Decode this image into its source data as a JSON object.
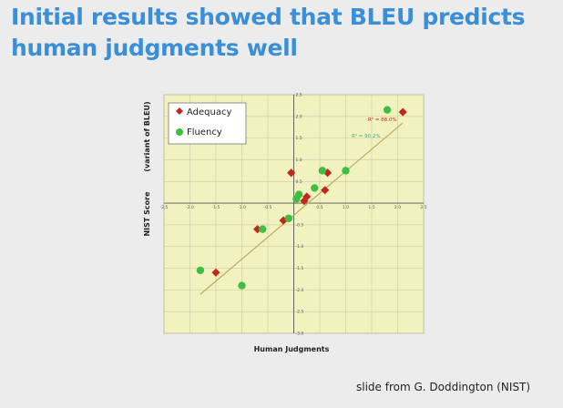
{
  "slide": {
    "title_line1": "Initial results showed that BLEU predicts",
    "title_line2": "human judgments well",
    "credit": "slide from G. Doddington (NIST)"
  },
  "chart_data": {
    "type": "scatter",
    "xlabel": "Human Judgments",
    "ylabel_main": "NIST Score",
    "ylabel_sub": "(variant of BLEU)",
    "xlim": [
      -2.5,
      2.5
    ],
    "ylim": [
      -3.0,
      2.5
    ],
    "x_ticks": [
      -2.5,
      -2.0,
      -1.5,
      -1.0,
      -0.5,
      0.5,
      1.0,
      1.5,
      2.0,
      2.5
    ],
    "x_tick_labels": [
      "-2.5",
      "-2.0",
      "-1.5",
      "-1.0",
      "-0.5",
      "0.5",
      "1.0",
      "1.5",
      "2.0",
      "2.5"
    ],
    "y_ticks": [
      2.5,
      2.0,
      1.5,
      1.0,
      0.5,
      -0.5,
      -1.0,
      -1.5,
      -2.0,
      -2.5,
      -3.0
    ],
    "y_tick_labels": [
      "2.5",
      "2.0",
      "1.5",
      "1.0",
      "0.5",
      "-0.5",
      "-1.0",
      "-1.5",
      "-2.0",
      "-2.5",
      "-3.0"
    ],
    "legend": [
      "Adequacy",
      "Fluency"
    ],
    "legend_position": "top-left",
    "series": [
      {
        "name": "Adequacy",
        "marker": "diamond",
        "color": "#c0281e",
        "points": [
          {
            "x": 2.1,
            "y": 2.1
          },
          {
            "x": -1.5,
            "y": -1.6
          },
          {
            "x": -0.7,
            "y": -0.6
          },
          {
            "x": -0.2,
            "y": -0.4
          },
          {
            "x": -0.05,
            "y": 0.7
          },
          {
            "x": 0.2,
            "y": 0.05
          },
          {
            "x": 0.25,
            "y": 0.15
          },
          {
            "x": 0.6,
            "y": 0.3
          },
          {
            "x": 0.65,
            "y": 0.7
          }
        ],
        "r2_label": "R² = 88.0%"
      },
      {
        "name": "Fluency",
        "marker": "circle",
        "color": "#3fbf3f",
        "points": [
          {
            "x": 1.8,
            "y": 2.15
          },
          {
            "x": -1.8,
            "y": -1.55
          },
          {
            "x": -1.0,
            "y": -1.9
          },
          {
            "x": -0.6,
            "y": -0.6
          },
          {
            "x": -0.1,
            "y": -0.35
          },
          {
            "x": 0.05,
            "y": 0.1
          },
          {
            "x": 0.1,
            "y": 0.2
          },
          {
            "x": 0.4,
            "y": 0.35
          },
          {
            "x": 0.55,
            "y": 0.75
          },
          {
            "x": 1.0,
            "y": 0.75
          }
        ],
        "r2_label": "R² = 90.2%"
      }
    ],
    "trendline": {
      "from": [
        -1.8,
        -2.1
      ],
      "to": [
        2.1,
        1.85
      ]
    }
  }
}
